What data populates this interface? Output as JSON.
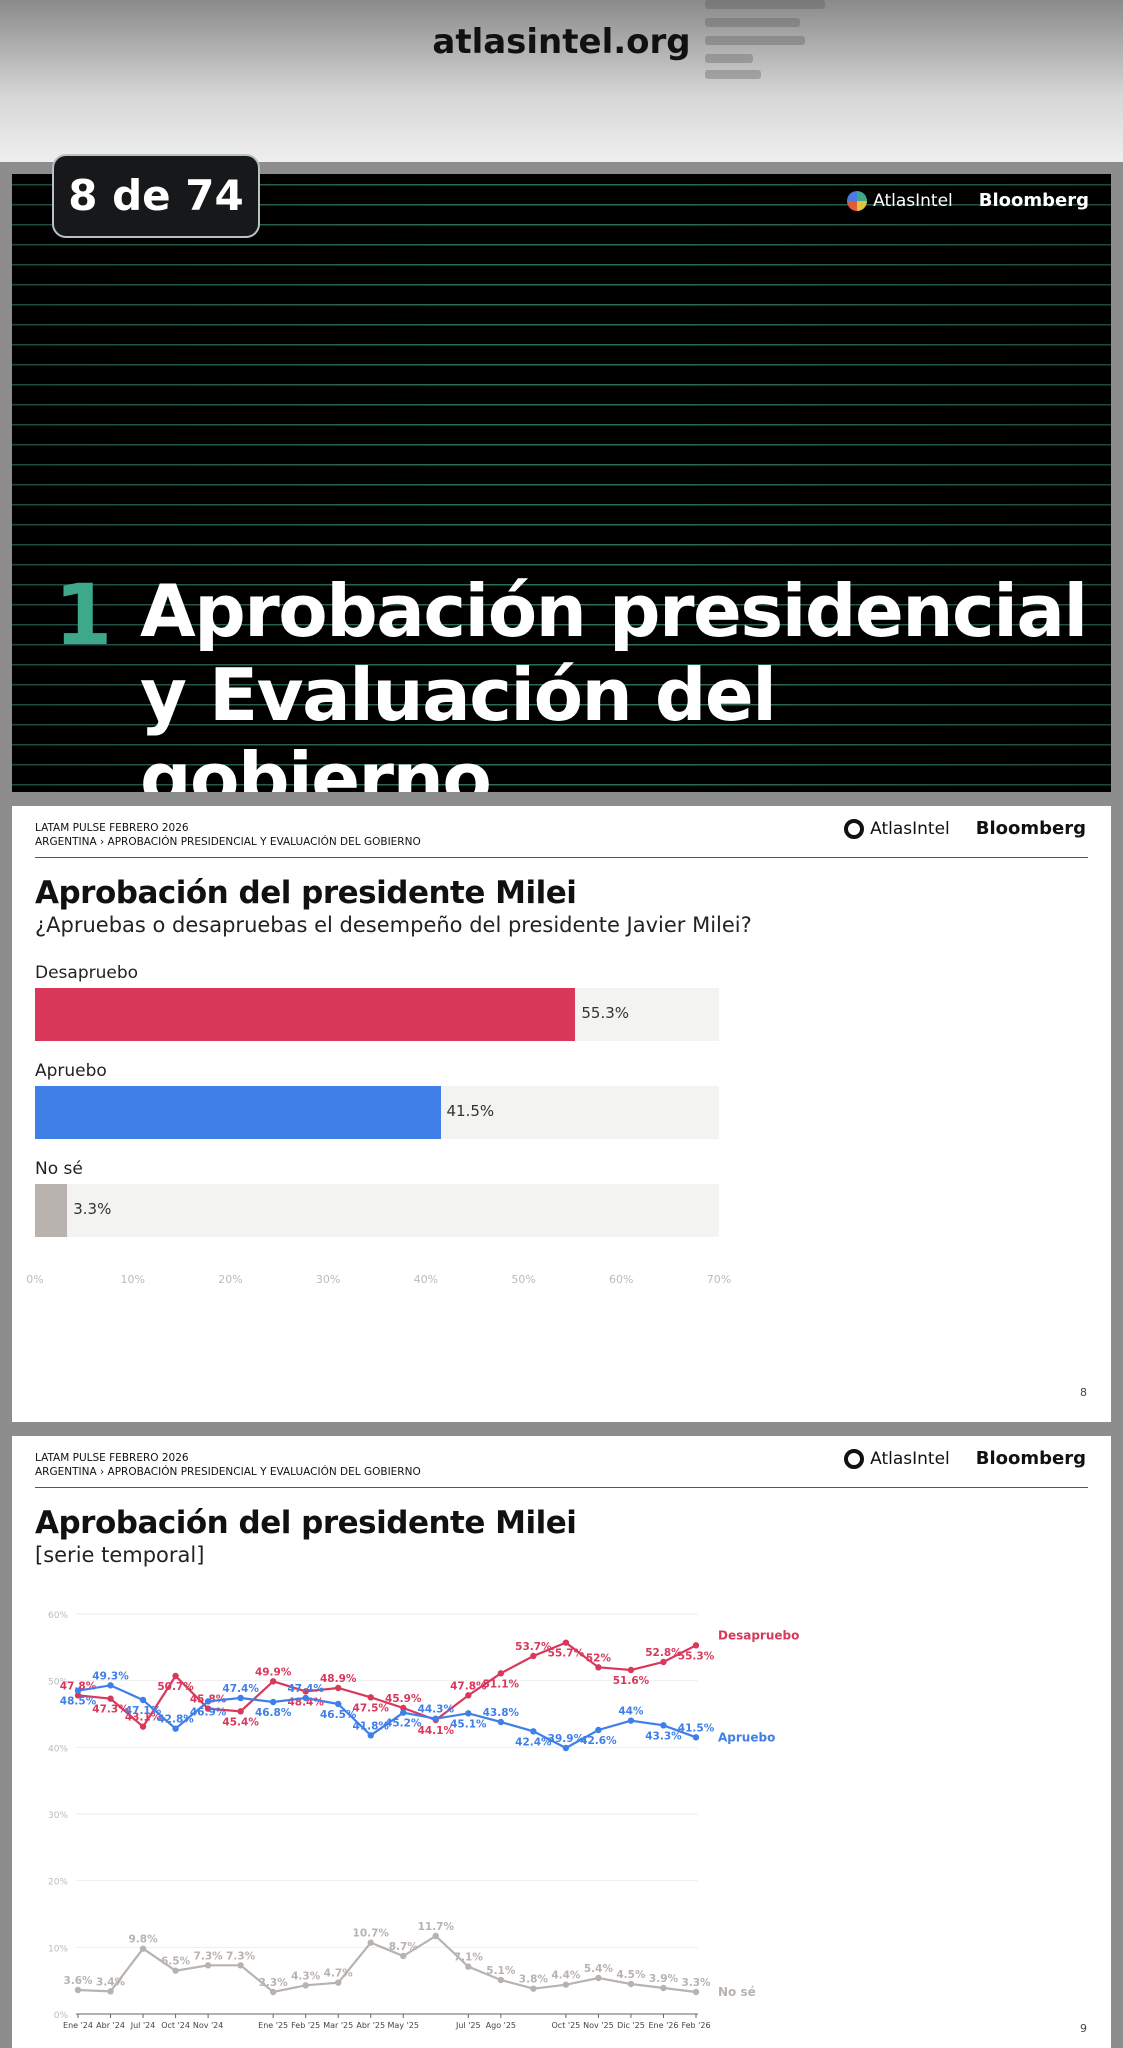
{
  "site": "atlasintel.org",
  "counter": "8 de 74",
  "brand": {
    "atlas": "AtlasIntel",
    "bloomberg": "Bloomberg"
  },
  "section": {
    "number": "1",
    "title_line1": "Aprobación presidencial",
    "title_line2": "y Evaluación del gobierno"
  },
  "header": {
    "line1": "LATAM PULSE FEBRERO 2026",
    "line2": "ARGENTINA › APROBACIÓN PRESIDENCIAL Y EVALUACIÓN DEL GOBIERNO"
  },
  "colors": {
    "desapruebo": "#d9385b",
    "apruebo": "#3f7fe8",
    "nose": "#b9b3b0",
    "accent": "#3ea98a"
  },
  "chart_data": [
    {
      "type": "bar",
      "title": "Aprobación del presidente Milei",
      "subtitle": "¿Apruebas o desapruebas el desempeño del presidente Javier Milei?",
      "categories": [
        "Desapruebo",
        "Apruebo",
        "No sé"
      ],
      "values": [
        55.3,
        41.5,
        3.3
      ],
      "value_labels": [
        "55.3%",
        "41.5%",
        "3.3%"
      ],
      "xlim": [
        0,
        70
      ],
      "xticks": [
        "0%",
        "10%",
        "20%",
        "30%",
        "40%",
        "50%",
        "60%",
        "70%"
      ],
      "page": "8"
    },
    {
      "type": "line",
      "title": "Aprobación del presidente Milei",
      "subtitle": "[serie temporal]",
      "ylim": [
        0,
        60
      ],
      "yticks": [
        "0%",
        "10%",
        "20%",
        "30%",
        "40%",
        "50%",
        "60%"
      ],
      "x_labels": [
        "Ene '24",
        "",
        "Abr '24",
        "",
        "Jul '24",
        "",
        "Oct '24",
        "",
        "Nov '24",
        "",
        "",
        "",
        "Ene '25",
        "",
        "Feb '25",
        "",
        "Mar '25",
        "",
        "Abr '25",
        "",
        "May '25",
        "",
        "",
        "",
        "Jul '25",
        "",
        "Ago '25",
        "",
        "",
        "",
        "Oct '25",
        "",
        "Nov '25",
        "",
        "Dic '25",
        "",
        "Ene '26",
        "",
        "Feb '26"
      ],
      "x_label_list": [
        "Ene '24",
        "Abr '24",
        "Jul '24",
        "Oct '24",
        "Nov '24",
        "Ene '25",
        "Feb '25",
        "Mar '25",
        "Abr '25",
        "May '25",
        "Jul '25",
        "Ago '25",
        "Oct '25",
        "Nov '25",
        "Dic '25",
        "Ene '26",
        "Feb '26"
      ],
      "x_label_positions": [
        0,
        1,
        2,
        3,
        4,
        6,
        7,
        8,
        9,
        10,
        12,
        13,
        15,
        16,
        17,
        18,
        19
      ],
      "series": [
        {
          "name": "Desapruebo",
          "values": [
            47.8,
            47.3,
            43.1,
            50.7,
            45.8,
            45.4,
            49.9,
            48.4,
            48.9,
            47.5,
            45.9,
            44.1,
            47.8,
            51.1,
            53.7,
            55.7,
            52.0,
            51.6,
            52.8,
            55.3
          ],
          "labels": [
            "47.8%",
            "47.3%",
            "43.1%",
            "50.7%",
            "45.8%",
            "45.4%",
            "49.9%",
            "48.4%",
            "48.9%",
            "47.5%",
            "45.9%",
            "44.1%",
            "47.8%",
            "51.1%",
            "53.7%",
            "55.7%",
            "52%",
            "51.6%",
            "52.8%",
            "55.3%"
          ]
        },
        {
          "name": "Apruebo",
          "values": [
            48.5,
            49.3,
            47.1,
            42.8,
            46.9,
            47.4,
            46.8,
            47.4,
            46.5,
            41.8,
            45.2,
            44.3,
            45.1,
            43.8,
            42.4,
            39.9,
            42.6,
            44.0,
            43.3,
            41.5
          ],
          "labels": [
            "48.5%",
            "49.3%",
            "47.1%",
            "42.8%",
            "46.9%",
            "47.4%",
            "46.8%",
            "47.4%",
            "46.5%",
            "41.8%",
            "45.2%",
            "44.3%",
            "45.1%",
            "43.8%",
            "42.4%",
            "39.9%",
            "42.6%",
            "44%",
            "43.3%",
            "41.5%"
          ]
        },
        {
          "name": "No sé",
          "values": [
            3.6,
            3.4,
            9.8,
            6.5,
            7.3,
            7.3,
            3.3,
            4.3,
            4.7,
            10.7,
            8.7,
            11.7,
            7.1,
            5.1,
            3.8,
            4.4,
            5.4,
            4.5,
            3.9,
            3.3
          ],
          "labels": [
            "3.6%",
            "3.4%",
            "9.8%",
            "6.5%",
            "7.3%",
            "7.3%",
            "3.3%",
            "4.3%",
            "4.7%",
            "10.7%",
            "8.7%",
            "11.7%",
            "7.1%",
            "5.1%",
            "3.8%",
            "4.4%",
            "5.4%",
            "4.5%",
            "3.9%",
            "3.3%"
          ]
        }
      ],
      "page": "9"
    }
  ]
}
